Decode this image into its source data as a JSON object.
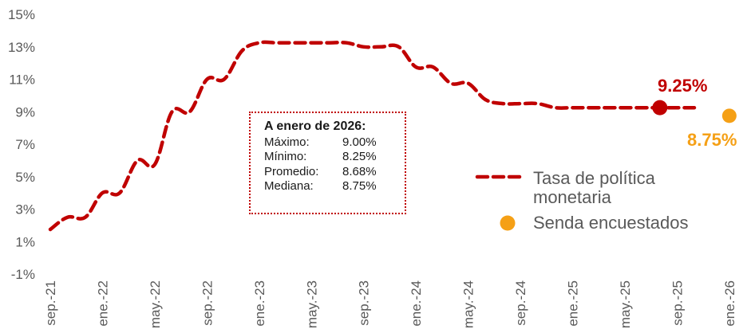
{
  "chart_data": {
    "type": "line",
    "y_ticks": [
      "15%",
      "13%",
      "11%",
      "9%",
      "7%",
      "5%",
      "3%",
      "1%",
      "-1%"
    ],
    "ylim": [
      -1,
      15
    ],
    "x_ticks": [
      "sep.-21",
      "ene.-22",
      "may.-22",
      "sep.-22",
      "ene.-23",
      "may.-23",
      "sep.-23",
      "ene.-24",
      "may.-24",
      "sep.-24",
      "ene.-25",
      "may.-25",
      "sep.-25",
      "ene.-26"
    ],
    "series": [
      {
        "name": "Tasa de política monetaria",
        "color": "#c00000",
        "style": "dashed",
        "x": [
          0,
          0.33,
          0.67,
          1,
          1.33,
          1.67,
          2,
          2.33,
          2.67,
          3,
          3.33,
          3.67,
          4,
          4.33,
          4.67,
          5,
          5.33,
          5.67,
          6,
          6.33,
          6.67,
          7,
          7.33,
          7.67,
          8,
          8.33,
          8.67,
          9,
          9.33,
          9.67,
          10,
          10.33,
          10.67,
          11,
          11.33,
          11.67,
          12,
          12.33
        ],
        "values": [
          1.75,
          2.5,
          2.5,
          4.0,
          4.0,
          6.0,
          5.75,
          9.0,
          9.0,
          11.0,
          11.0,
          12.75,
          13.25,
          13.25,
          13.25,
          13.25,
          13.25,
          13.25,
          13.0,
          13.0,
          13.0,
          11.75,
          11.75,
          10.75,
          10.75,
          9.75,
          9.5,
          9.5,
          9.5,
          9.25,
          9.25,
          9.25,
          9.25,
          9.25,
          9.25,
          9.25,
          9.25,
          9.25
        ]
      }
    ],
    "current_point": {
      "x": 11.67,
      "value": 9.25,
      "label": "9.25%"
    },
    "survey_point": {
      "name": "Senda encuestados",
      "x": 13,
      "value": 8.75,
      "label": "8.75%",
      "color": "#f5a016"
    },
    "legend": {
      "line_label_1": "Tasa de política",
      "line_label_2": "monetaria",
      "dot_label": "Senda encuestados"
    }
  },
  "info_box": {
    "title": "A enero de 2026:",
    "rows": [
      {
        "key": "Máximo:",
        "value": "9.00%"
      },
      {
        "key": "Mínimo:",
        "value": "8.25%"
      },
      {
        "key": "Promedio:",
        "value": "8.68%"
      },
      {
        "key": "Mediana:",
        "value": "8.75%"
      }
    ]
  }
}
